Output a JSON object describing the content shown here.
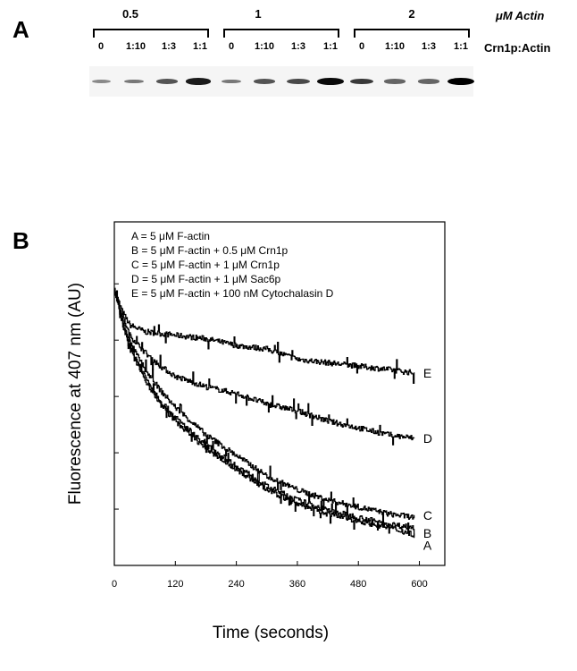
{
  "panel_a": {
    "letter": "A",
    "concentration_unit": "μM Actin",
    "ratio_label": "Crn1p:Actin",
    "groups": [
      {
        "concentration": "0.5",
        "lanes": [
          "0",
          "1:10",
          "1:3",
          "1:1"
        ],
        "band_intensity": [
          0.25,
          0.35,
          0.55,
          0.85
        ]
      },
      {
        "concentration": "1",
        "lanes": [
          "0",
          "1:10",
          "1:3",
          "1:1"
        ],
        "band_intensity": [
          0.35,
          0.55,
          0.6,
          0.95
        ]
      },
      {
        "concentration": "2",
        "lanes": [
          "0",
          "1:10",
          "1:3",
          "1:1"
        ],
        "band_intensity": [
          0.7,
          0.45,
          0.45,
          1.0
        ]
      }
    ]
  },
  "panel_b": {
    "letter": "B",
    "legend": [
      "A = 5 μM F-actin",
      "B = 5 μM F-actin + 0.5 μM Crn1p",
      "C = 5 μM F-actin + 1 μM Crn1p",
      "D = 5 μM F-actin + 1 μM Sac6p",
      "E = 5 μM F-actin + 100 nM Cytochalasin D"
    ]
  },
  "chart_data": {
    "type": "line",
    "title": "",
    "xlabel": "Time (seconds)",
    "ylabel": "Fluorescence at 407 nm (AU)",
    "xlim": [
      0,
      650
    ],
    "ylim": [
      0,
      100
    ],
    "xticks": [
      0,
      120,
      240,
      360,
      480,
      600
    ],
    "grid": false,
    "legend_position": "top-left",
    "series": [
      {
        "name": "E",
        "x": [
          0,
          15,
          30,
          60,
          120,
          180,
          240,
          300,
          360,
          420,
          480,
          540,
          590
        ],
        "y": [
          80,
          74,
          70,
          68,
          67,
          66,
          64,
          63,
          60,
          59,
          58,
          57,
          56
        ]
      },
      {
        "name": "D",
        "x": [
          0,
          15,
          30,
          60,
          90,
          120,
          180,
          240,
          300,
          360,
          420,
          480,
          540,
          590
        ],
        "y": [
          80,
          73,
          67,
          62,
          58,
          55,
          52,
          50,
          47,
          45,
          42,
          40,
          38,
          37
        ]
      },
      {
        "name": "C",
        "x": [
          0,
          15,
          30,
          60,
          90,
          120,
          180,
          240,
          300,
          360,
          420,
          480,
          540,
          590
        ],
        "y": [
          80,
          72,
          65,
          57,
          51,
          46,
          38,
          32,
          26,
          22,
          19,
          17,
          15,
          14
        ]
      },
      {
        "name": "B",
        "x": [
          0,
          15,
          30,
          60,
          90,
          120,
          180,
          240,
          300,
          360,
          420,
          480,
          540,
          590
        ],
        "y": [
          80,
          71,
          64,
          55,
          48,
          43,
          35,
          29,
          23,
          19,
          16,
          14,
          12,
          11
        ]
      },
      {
        "name": "A",
        "x": [
          0,
          15,
          30,
          60,
          90,
          120,
          180,
          240,
          300,
          360,
          420,
          480,
          540,
          590
        ],
        "y": [
          81,
          71,
          63,
          54,
          47,
          42,
          34,
          28,
          22,
          18,
          15,
          13,
          11,
          9
        ]
      }
    ]
  }
}
